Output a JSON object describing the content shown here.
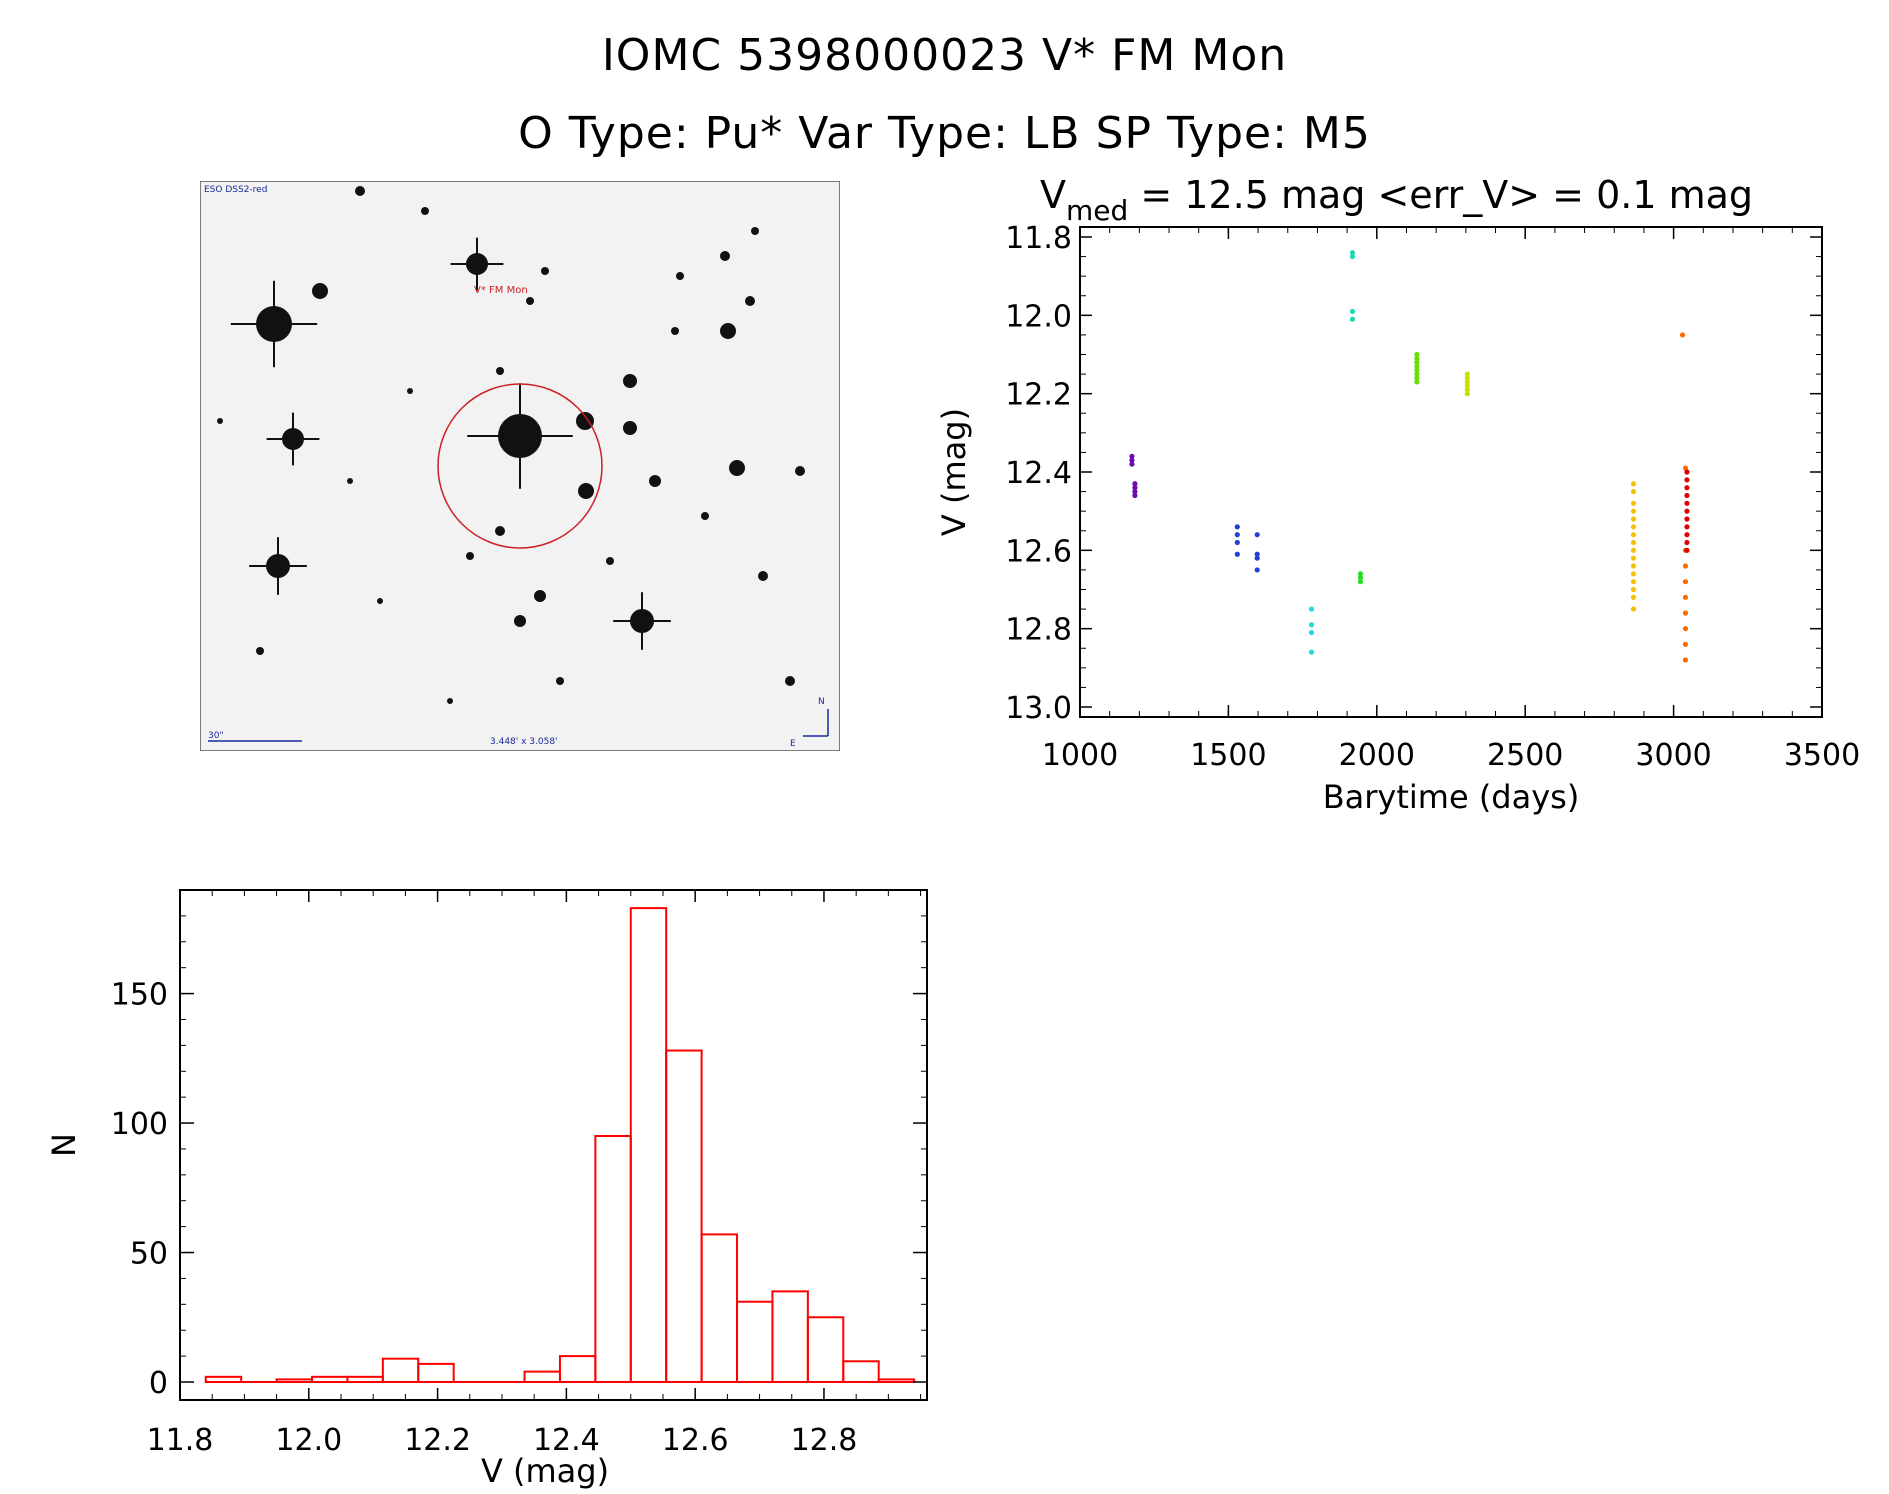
{
  "header": {
    "title_line1": "IOMC 5398000023    V* FM Mon",
    "title_line2": "O Type: Pu*  Var Type: LB  SP Type: M5"
  },
  "sky_image": {
    "survey_label": "ESO DSS2-red",
    "target_label": "V* FM Mon",
    "scale_label": "30\"",
    "fov_label": "3.448' x 3.058'",
    "north_label": "N",
    "east_label": "E",
    "circle_color": "#cc2222"
  },
  "chart_data": [
    {
      "type": "scatter",
      "title_main": "V",
      "title_sub": "med",
      "title_rest": " = 12.5 mag <err_V> = 0.1 mag",
      "xlabel": "Barytime (days)",
      "ylabel": "V (mag)",
      "xlim": [
        1000,
        3500
      ],
      "ylim": [
        13.0,
        11.8
      ],
      "y_inverted": true,
      "xticks": [
        1000,
        1500,
        2000,
        2500,
        3000,
        3500
      ],
      "yticks": [
        11.8,
        12.0,
        12.2,
        12.4,
        12.6,
        12.8,
        13.0
      ],
      "series": [
        {
          "name": "purple",
          "color": "#6a0dad",
          "points": [
            [
              1175,
              12.36
            ],
            [
              1175,
              12.37
            ],
            [
              1175,
              12.38
            ],
            [
              1185,
              12.43
            ],
            [
              1185,
              12.44
            ],
            [
              1185,
              12.45
            ],
            [
              1185,
              12.46
            ]
          ]
        },
        {
          "name": "blue",
          "color": "#1f3fd6",
          "points": [
            [
              1530,
              12.54
            ],
            [
              1530,
              12.56
            ],
            [
              1530,
              12.58
            ],
            [
              1530,
              12.61
            ],
            [
              1597,
              12.56
            ],
            [
              1597,
              12.61
            ],
            [
              1597,
              12.62
            ],
            [
              1597,
              12.65
            ]
          ]
        },
        {
          "name": "cyan",
          "color": "#22d8e0",
          "points": [
            [
              1780,
              12.75
            ],
            [
              1780,
              12.79
            ],
            [
              1780,
              12.81
            ],
            [
              1780,
              12.86
            ]
          ]
        },
        {
          "name": "teal",
          "color": "#1fd8b0",
          "points": [
            [
              1918,
              11.84
            ],
            [
              1918,
              11.85
            ],
            [
              1918,
              11.99
            ],
            [
              1918,
              12.01
            ]
          ]
        },
        {
          "name": "green",
          "color": "#22dd22",
          "points": [
            [
              1945,
              12.66
            ],
            [
              1945,
              12.67
            ],
            [
              1945,
              12.68
            ]
          ]
        },
        {
          "name": "lime",
          "color": "#66e000",
          "points": [
            [
              2135,
              12.1
            ],
            [
              2135,
              12.11
            ],
            [
              2135,
              12.12
            ],
            [
              2135,
              12.13
            ],
            [
              2135,
              12.14
            ],
            [
              2135,
              12.15
            ],
            [
              2135,
              12.16
            ],
            [
              2135,
              12.17
            ]
          ]
        },
        {
          "name": "yellow-green",
          "color": "#c8e000",
          "points": [
            [
              2305,
              12.15
            ],
            [
              2305,
              12.16
            ],
            [
              2305,
              12.17
            ],
            [
              2305,
              12.18
            ],
            [
              2305,
              12.19
            ],
            [
              2305,
              12.2
            ]
          ]
        },
        {
          "name": "gold",
          "color": "#f3c300",
          "points": [
            [
              2865,
              12.43
            ],
            [
              2865,
              12.45
            ],
            [
              2865,
              12.48
            ],
            [
              2865,
              12.5
            ],
            [
              2865,
              12.52
            ],
            [
              2865,
              12.54
            ],
            [
              2865,
              12.56
            ],
            [
              2865,
              12.58
            ],
            [
              2865,
              12.6
            ],
            [
              2865,
              12.62
            ],
            [
              2865,
              12.64
            ],
            [
              2865,
              12.66
            ],
            [
              2865,
              12.68
            ],
            [
              2865,
              12.7
            ],
            [
              2865,
              12.72
            ],
            [
              2865,
              12.75
            ]
          ]
        },
        {
          "name": "orange",
          "color": "#ff6a00",
          "points": [
            [
              3030,
              12.05
            ],
            [
              3040,
              12.39
            ],
            [
              3040,
              12.6
            ],
            [
              3040,
              12.64
            ],
            [
              3040,
              12.68
            ],
            [
              3040,
              12.72
            ],
            [
              3040,
              12.76
            ],
            [
              3040,
              12.8
            ],
            [
              3040,
              12.84
            ],
            [
              3040,
              12.88
            ]
          ]
        },
        {
          "name": "red",
          "color": "#e00000",
          "points": [
            [
              3045,
              12.4
            ],
            [
              3045,
              12.42
            ],
            [
              3045,
              12.44
            ],
            [
              3045,
              12.46
            ],
            [
              3045,
              12.48
            ],
            [
              3045,
              12.5
            ],
            [
              3045,
              12.52
            ],
            [
              3045,
              12.54
            ],
            [
              3045,
              12.56
            ],
            [
              3045,
              12.58
            ],
            [
              3045,
              12.6
            ]
          ]
        }
      ]
    },
    {
      "type": "bar",
      "histogram": true,
      "xlabel": "V (mag)",
      "ylabel": "N",
      "xlim": [
        11.8,
        12.96
      ],
      "ylim": [
        0,
        190
      ],
      "xticks": [
        11.8,
        12.0,
        12.2,
        12.4,
        12.6,
        12.8
      ],
      "yticks": [
        0,
        50,
        100,
        150
      ],
      "bar_color": "#ff0000",
      "bin_width": 0.055,
      "bin_edges_start": 11.84,
      "values": [
        2,
        0,
        1,
        2,
        2,
        9,
        7,
        0,
        0,
        4,
        10,
        95,
        183,
        128,
        57,
        31,
        35,
        25,
        8,
        1
      ]
    }
  ]
}
